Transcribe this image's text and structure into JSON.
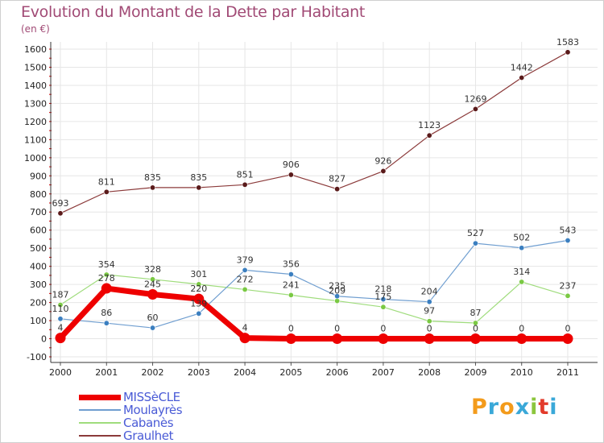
{
  "header": {
    "title": "Evolution du Montant de la Dette par Habitant",
    "unit": "(en €)"
  },
  "logo": {
    "text": "Proxiti",
    "colors": [
      "#f39b1b",
      "#3aa8d8",
      "#f39b1b",
      "#3aa8d8",
      "#8cc63e",
      "#e23b2b",
      "#3aa8d8"
    ]
  },
  "colors": {
    "title": "#a14a75",
    "legend_text": "#4a5bd6",
    "axis_ticks": "#d00000"
  },
  "chart_data": {
    "type": "line",
    "title": "Evolution du Montant de la Dette par Habitant",
    "ylabel": "(en €)",
    "xlabel": "",
    "ylim": [
      -100,
      1600
    ],
    "yticks": [
      -100,
      0,
      100,
      200,
      300,
      400,
      500,
      600,
      700,
      800,
      900,
      1000,
      1100,
      1200,
      1300,
      1400,
      1500,
      1600
    ],
    "grid": true,
    "legend_position": "bottom-left",
    "categories": [
      "2000",
      "2001",
      "2002",
      "2003",
      "2004",
      "2005",
      "2006",
      "2007",
      "2008",
      "2009",
      "2010",
      "2011"
    ],
    "series": [
      {
        "name": "MISSèCLE",
        "color": "#ee0000",
        "values": [
          4,
          278,
          245,
          220,
          4,
          0,
          0,
          0,
          0,
          0,
          0,
          0
        ]
      },
      {
        "name": "Moulayrès",
        "color": "#6f9ed0",
        "values": [
          110,
          86,
          60,
          139,
          379,
          356,
          235,
          218,
          204,
          527,
          502,
          543
        ]
      },
      {
        "name": "Cabanès",
        "color": "#9fdc7c",
        "values": [
          187,
          354,
          328,
          301,
          272,
          241,
          209,
          175,
          97,
          87,
          314,
          237
        ]
      },
      {
        "name": "Graulhet",
        "color": "#8b3a3a",
        "values": [
          693,
          811,
          835,
          835,
          851,
          906,
          827,
          926,
          1123,
          1269,
          1442,
          1583
        ]
      }
    ]
  }
}
